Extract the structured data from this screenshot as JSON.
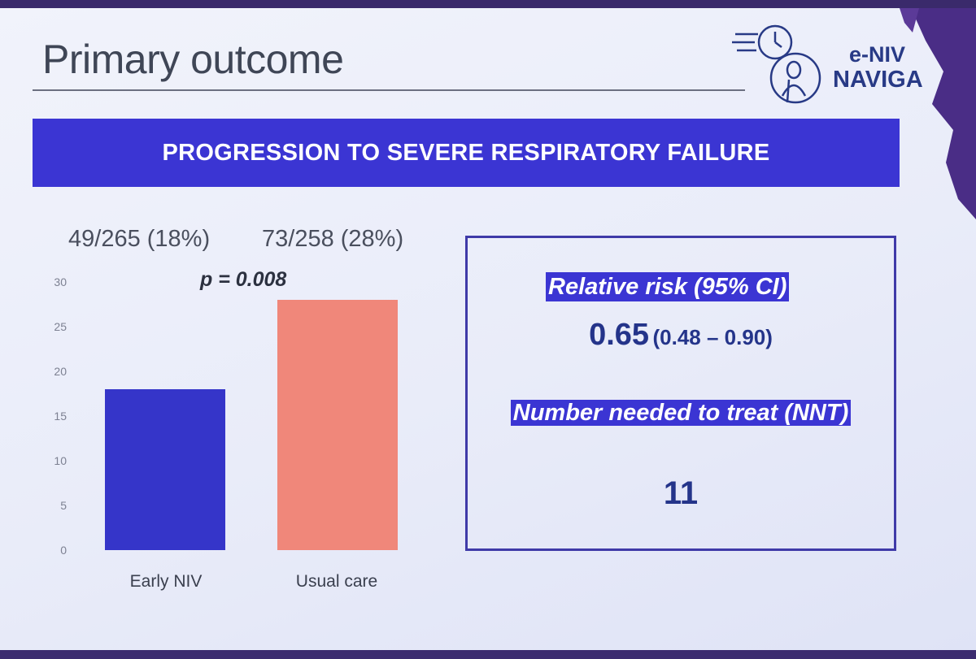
{
  "slide": {
    "title": "Primary outcome",
    "banner": "PROGRESSION TO SEVERE RESPIRATORY FAILURE",
    "logo": {
      "line1": "e-NIV",
      "line2": "NAVIGA"
    }
  },
  "counts": {
    "early": "49/265 (18%)",
    "usual": "73/258 (28%)"
  },
  "p_value": "p = 0.008",
  "chart_data": {
    "type": "bar",
    "categories": [
      "Early NIV",
      "Usual care"
    ],
    "values": [
      18,
      28
    ],
    "colors": [
      "#3535c9",
      "#f0877a"
    ],
    "yticks": [
      0,
      5,
      10,
      15,
      20,
      25,
      30
    ],
    "ylim": [
      0,
      30
    ],
    "title": "",
    "xlabel": "",
    "ylabel": ""
  },
  "stats": {
    "rr_label": "Relative risk (95% CI)",
    "rr_value": "0.65",
    "rr_ci": "(0.48 – 0.90)",
    "nnt_label": "Number needed to treat (NNT)",
    "nnt_value": "11"
  }
}
